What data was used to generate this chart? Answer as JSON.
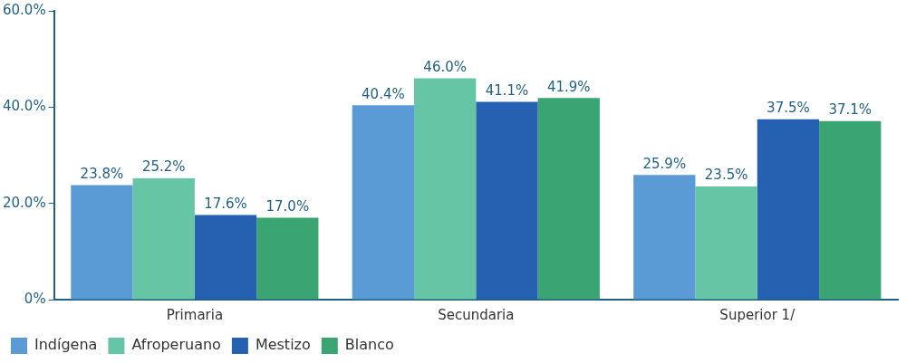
{
  "chart_data": {
    "type": "bar",
    "categories": [
      "Primaria",
      "Secundaria",
      "Superior 1/"
    ],
    "series": [
      {
        "name": "Indígena",
        "color": "#5b9bd5",
        "values": [
          23.8,
          40.4,
          25.9
        ],
        "value_labels": [
          "23.8%",
          "40.4%",
          "25.9%"
        ]
      },
      {
        "name": "Afroperuano",
        "color": "#66c5a4",
        "values": [
          25.2,
          46.0,
          23.5
        ],
        "value_labels": [
          "25.2%",
          "46.0%",
          "23.5%"
        ]
      },
      {
        "name": "Mestizo",
        "color": "#2660b0",
        "values": [
          17.6,
          41.1,
          37.5
        ],
        "value_labels": [
          "17.6%",
          "41.1%",
          "37.5%"
        ]
      },
      {
        "name": "Blanco",
        "color": "#3aa573",
        "values": [
          17.0,
          41.9,
          37.1
        ],
        "value_labels": [
          "17.0%",
          "41.9%",
          "37.1%"
        ]
      }
    ],
    "ylim": [
      0,
      60
    ],
    "yticks": [
      {
        "value": 0,
        "label": "0%"
      },
      {
        "value": 20,
        "label": "20.0%"
      },
      {
        "value": 40,
        "label": "40.0%"
      },
      {
        "value": 60,
        "label": "60.0%"
      }
    ],
    "grid": false,
    "legend": "bottom left"
  }
}
